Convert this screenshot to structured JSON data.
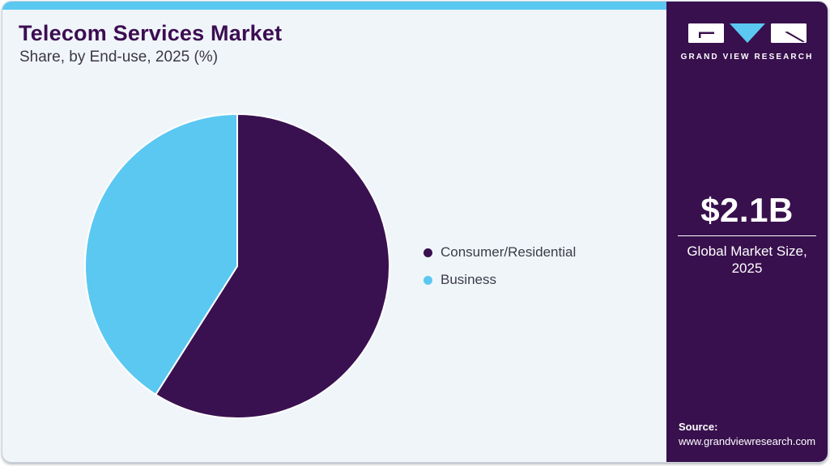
{
  "header": {
    "title": "Telecom Services Market",
    "subtitle": "Share, by End-use, 2025 (%)"
  },
  "chart_data": {
    "type": "pie",
    "title": "Telecom Services Market Share, by End-use, 2025 (%)",
    "categories": [
      "Consumer/Residential",
      "Business"
    ],
    "values": [
      59,
      41
    ],
    "unit": "%",
    "colors": [
      "#3a1150",
      "#5bc8f2"
    ],
    "start_angle_deg": 0,
    "direction": "clockwise",
    "legend_position": "right",
    "slice_border_color": "#ffffff"
  },
  "sidebar": {
    "brand_name": "GRAND VIEW RESEARCH",
    "market_size_value": "$2.1B",
    "market_size_label": "Global Market Size, 2025",
    "source_label": "Source:",
    "source_url": "www.grandviewresearch.com",
    "background_color": "#38104d",
    "accent_color": "#5bc8f2"
  }
}
